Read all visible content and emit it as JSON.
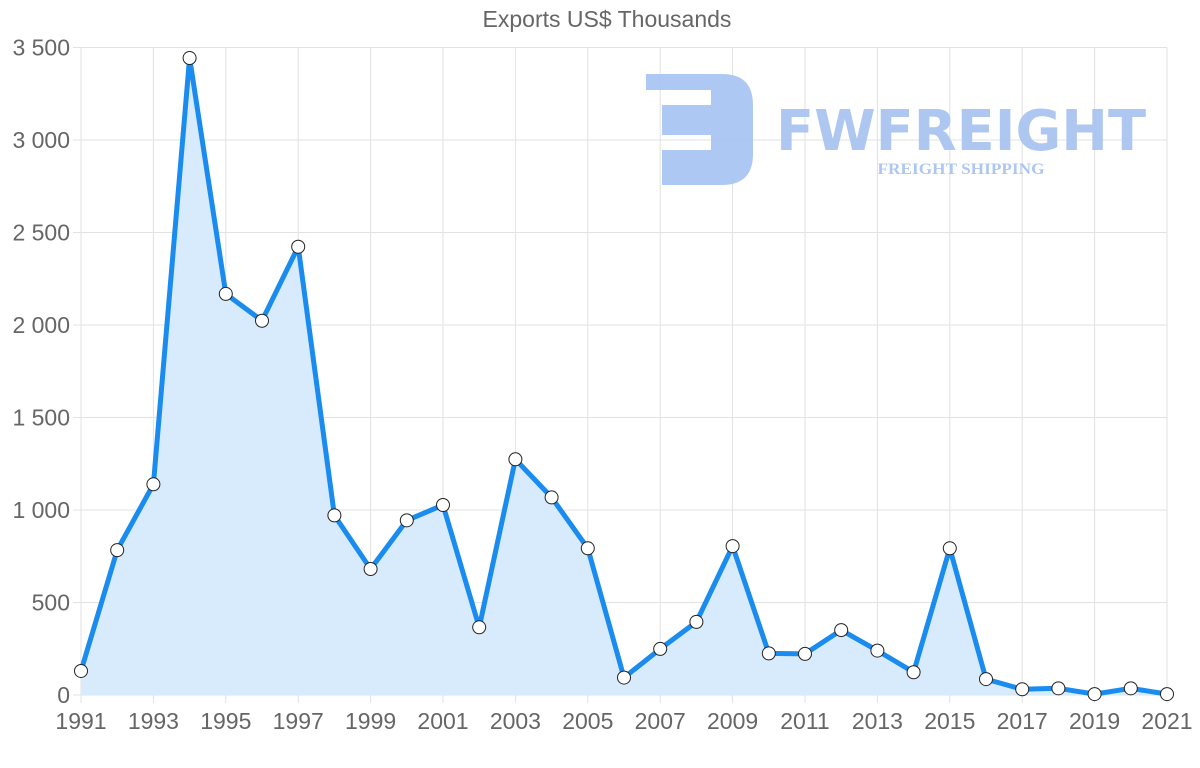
{
  "chart_data": {
    "type": "line",
    "title": "Exports US$ Thousands",
    "xlabel": "",
    "ylabel": "",
    "ylim": [
      0,
      3500
    ],
    "yticks": [
      0,
      500,
      1000,
      1500,
      2000,
      2500,
      3000,
      3500
    ],
    "ytick_labels": [
      "0",
      "500",
      "1 000",
      "1 500",
      "2 000",
      "2 500",
      "3 000",
      "3 500"
    ],
    "xtick_labels": [
      "1991",
      "1993",
      "1995",
      "1997",
      "1999",
      "2001",
      "2003",
      "2005",
      "2007",
      "2009",
      "2011",
      "2013",
      "2015",
      "2017",
      "2019",
      "2021"
    ],
    "grid": true,
    "legend": null,
    "fill": true,
    "x": [
      1991,
      1992,
      1993,
      1994,
      1995,
      1996,
      1997,
      1998,
      1999,
      2000,
      2001,
      2002,
      2003,
      2004,
      2005,
      2006,
      2007,
      2008,
      2009,
      2010,
      2011,
      2012,
      2013,
      2014,
      2015,
      2016,
      2017,
      2018,
      2019,
      2020,
      2021
    ],
    "series": [
      {
        "name": "Exports US$ Thousands",
        "values": [
          130,
          783,
          1139,
          3443,
          2168,
          2023,
          2423,
          971,
          681,
          944,
          1027,
          366,
          1274,
          1068,
          793,
          94,
          249,
          395,
          805,
          225,
          222,
          351,
          240,
          123,
          793,
          86,
          31,
          36,
          5,
          36,
          5
        ]
      }
    ]
  },
  "colors": {
    "line": "#1a8cf0",
    "fill": "#d8ebfc",
    "grid": "#e2e2e2",
    "axis_text": "#666666",
    "point_fill": "#ffffff",
    "point_stroke": "#222222",
    "watermark": "#a9c5f1"
  },
  "watermark": {
    "brand": "FWFREIGHT",
    "tagline": "FREIGHT SHIPPING",
    "icon": "fwfreight-logo-icon"
  }
}
